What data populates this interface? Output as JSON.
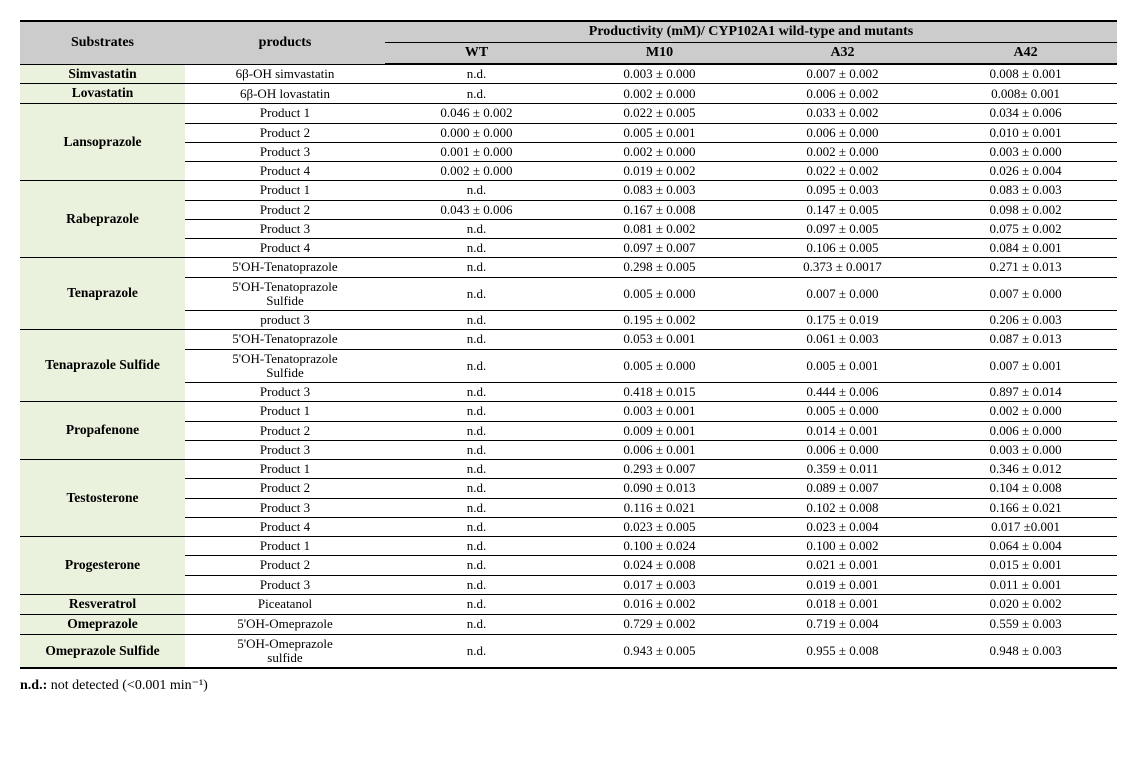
{
  "header": {
    "substrates": "Substrates",
    "products": "products",
    "group_title": "Productivity (mM)/ CYP102A1 wild-type and mutants",
    "cols": [
      "WT",
      "M10",
      "A32",
      "A42"
    ]
  },
  "footnote": {
    "label": "n.d.:",
    "text": " not detected (<0.001 min⁻¹)"
  },
  "substrates": [
    {
      "name": "Simvastatin",
      "rows": [
        {
          "product": "6β-OH simvastatin",
          "WT": "n.d.",
          "M10": "0.003  ±  0.000",
          "A32": "0.007   ±  0.002",
          "A42": "0.008   ±  0.001"
        }
      ]
    },
    {
      "name": "Lovastatin",
      "rows": [
        {
          "product": "6β-OH lovastatin",
          "WT": "n.d.",
          "M10": "0.002  ±  0.000",
          "A32": "0.006  ±  0.002",
          "A42": "0.008±  0.001"
        }
      ]
    },
    {
      "name": "Lansoprazole",
      "rows": [
        {
          "product": "Product 1",
          "WT": "0.046  ±  0.002",
          "M10": "0.022  ±  0.005",
          "A32": "0.033  ±  0.002",
          "A42": "0.034  ±  0.006"
        },
        {
          "product": "Product 2",
          "WT": "0.000  ±  0.000",
          "M10": "0.005  ±  0.001",
          "A32": "0.006  ±  0.000",
          "A42": "0.010  ±  0.001"
        },
        {
          "product": "Product 3",
          "WT": "0.001  ±  0.000",
          "M10": "0.002  ±  0.000",
          "A32": "0.002  ±  0.000",
          "A42": "0.003  ±  0.000"
        },
        {
          "product": "Product 4",
          "WT": "0.002  ±  0.000",
          "M10": "0.019  ±  0.002",
          "A32": "0.022  ±  0.002",
          "A42": "0.026  ±  0.004"
        }
      ]
    },
    {
      "name": "Rabeprazole",
      "rows": [
        {
          "product": "Product 1",
          "WT": "n.d.",
          "M10": "0.083  ±  0.003",
          "A32": "0.095  ±  0.003",
          "A42": "0.083  ±  0.003"
        },
        {
          "product": "Product 2",
          "WT": "0.043  ±  0.006",
          "M10": "0.167  ±  0.008",
          "A32": "0.147  ±  0.005",
          "A42": "0.098  ±  0.002"
        },
        {
          "product": "Product 3",
          "WT": "n.d.",
          "M10": "0.081  ±  0.002",
          "A32": "0.097  ±  0.005",
          "A42": "0.075  ±  0.002"
        },
        {
          "product": "Product 4",
          "WT": "n.d.",
          "M10": "0.097  ±  0.007",
          "A32": "0.106  ±  0.005",
          "A42": "0.084  ±  0.001"
        }
      ]
    },
    {
      "name": "Tenaprazole",
      "rows": [
        {
          "product": "5'OH-Tenatoprazole",
          "WT": "n.d.",
          "M10": "0.298  ±  0.005",
          "A32": "0.373  ±  0.0017",
          "A42": "0.271  ±  0.013"
        },
        {
          "product": "5'OH-Tenatoprazole Sulfide",
          "twoline": true,
          "WT": "n.d.",
          "M10": "0.005  ±  0.000",
          "A32": "0.007  ±  0.000",
          "A42": "0.007  ±  0.000"
        },
        {
          "product": "product 3",
          "WT": "n.d.",
          "M10": "0.195  ±  0.002",
          "A32": "0.175  ±  0.019",
          "A42": "0.206  ±  0.003"
        }
      ]
    },
    {
      "name": "Tenaprazole Sulfide",
      "rows": [
        {
          "product": "5'OH-Tenatoprazole",
          "WT": "n.d.",
          "M10": "0.053  ±  0.001",
          "A32": "0.061  ±  0.003",
          "A42": "0.087  ±  0.013"
        },
        {
          "product": "5'OH-Tenatoprazole Sulfide",
          "twoline": true,
          "WT": "n.d.",
          "M10": "0.005  ±  0.000",
          "A32": "0.005  ±  0.001",
          "A42": "0.007  ±  0.001"
        },
        {
          "product": "Product 3",
          "WT": "n.d.",
          "M10": "0.418  ±  0.015",
          "A32": "0.444  ±  0.006",
          "A42": "0.897  ±  0.014"
        }
      ]
    },
    {
      "name": "Propafenone",
      "rows": [
        {
          "product": "Product 1",
          "WT": "n.d.",
          "M10": "0.003  ±  0.001",
          "A32": "0.005  ±  0.000",
          "A42": "0.002  ±  0.000"
        },
        {
          "product": "Product 2",
          "WT": "n.d.",
          "M10": "0.009  ±  0.001",
          "A32": "0.014  ±  0.001",
          "A42": "0.006  ±  0.000"
        },
        {
          "product": "Product 3",
          "WT": "n.d.",
          "M10": "0.006  ±  0.001",
          "A32": "0.006  ±  0.000",
          "A42": "0.003  ±  0.000"
        }
      ]
    },
    {
      "name": "Testosterone",
      "rows": [
        {
          "product": "Product 1",
          "WT": "n.d.",
          "M10": "0.293  ±  0.007",
          "A32": "0.359  ±  0.011",
          "A42": "0.346  ±  0.012"
        },
        {
          "product": "Product 2",
          "WT": "n.d.",
          "M10": "0.090  ±  0.013",
          "A32": "0.089  ±  0.007",
          "A42": "0.104  ±  0.008"
        },
        {
          "product": "Product 3",
          "WT": "n.d.",
          "M10": "0.116  ±  0.021",
          "A32": "0.102  ±  0.008",
          "A42": "0.166  ±  0.021"
        },
        {
          "product": "Product 4",
          "WT": "n.d.",
          "M10": "0.023  ±  0.005",
          "A32": "0.023  ±  0.004",
          "A42": "0.017  ±0.001"
        }
      ]
    },
    {
      "name": "Progesterone",
      "rows": [
        {
          "product": "Product 1",
          "WT": "n.d.",
          "M10": "0.100  ±  0.024",
          "A32": "0.100  ±  0.002",
          "A42": "0.064  ±  0.004"
        },
        {
          "product": "Product 2",
          "WT": "n.d.",
          "M10": "0.024  ±  0.008",
          "A32": "0.021  ±  0.001",
          "A42": "0.015  ±  0.001"
        },
        {
          "product": "Product 3",
          "WT": "n.d.",
          "M10": "0.017  ±  0.003",
          "A32": "0.019  ±  0.001",
          "A42": "0.011  ±  0.001"
        }
      ]
    },
    {
      "name": "Resveratrol",
      "rows": [
        {
          "product": "Piceatanol",
          "WT": "n.d.",
          "M10": "0.016  ±  0.002",
          "A32": "0.018  ±  0.001",
          "A42": "0.020  ±  0.002"
        }
      ]
    },
    {
      "name": "Omeprazole",
      "rows": [
        {
          "product": "5'OH-Omeprazole",
          "WT": "n.d.",
          "M10": "0.729  ±  0.002",
          "A32": "0.719  ±  0.004",
          "A42": "0.559  ±  0.003"
        }
      ]
    },
    {
      "name": "Omeprazole Sulfide",
      "last": true,
      "rows": [
        {
          "product": "5'OH-Omeprazole sulfide",
          "twoline": true,
          "WT": "n.d.",
          "M10": "0.943  ±  0.005",
          "A32": "0.955  ±  0.008",
          "A42": "0.948  ±  0.003"
        }
      ]
    }
  ],
  "style": {
    "header_bg": "#cccccc",
    "substrate_bg": "#eaf1dd",
    "border_color": "#000000",
    "text_color": "#000000",
    "font_family": "Times New Roman",
    "header_fontsize": 14,
    "cell_fontsize": 13
  }
}
